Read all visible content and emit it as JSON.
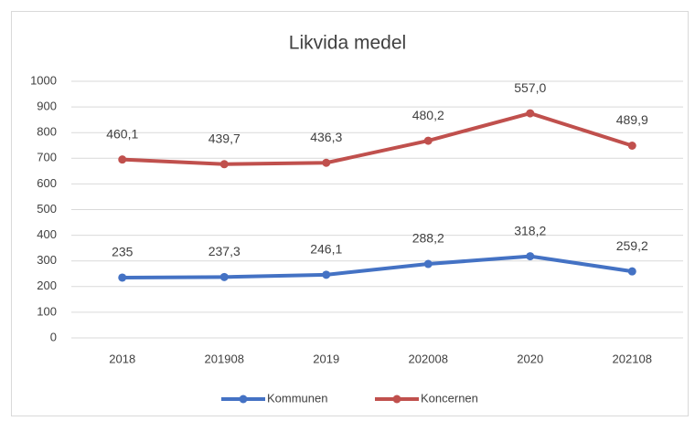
{
  "chart_data": {
    "type": "line",
    "stacked": true,
    "title": "Likvida medel",
    "categories": [
      "2018",
      "201908",
      "2019",
      "202008",
      "2020",
      "202108"
    ],
    "series": [
      {
        "name": "Kommunen",
        "color": "#4472c4",
        "values": [
          235,
          237.3,
          246.1,
          288.2,
          318.2,
          259.2
        ],
        "value_labels": [
          "235",
          "237,3",
          "246,1",
          "288,2",
          "318,2",
          "259,2"
        ]
      },
      {
        "name": "Koncernen",
        "color": "#c0504d",
        "values": [
          460.1,
          439.7,
          436.3,
          480.2,
          557.0,
          489.9
        ],
        "value_labels": [
          "460,1",
          "439,7",
          "436,3",
          "480,2",
          "557,0",
          "489,9"
        ]
      }
    ],
    "ylim": [
      0,
      1000
    ],
    "yticks": [
      0,
      100,
      200,
      300,
      400,
      500,
      600,
      700,
      800,
      900,
      1000
    ],
    "grid": true,
    "legend": "bottom"
  }
}
